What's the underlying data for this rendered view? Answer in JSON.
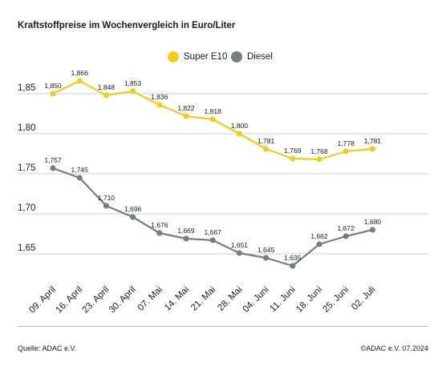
{
  "title": "Kraftstoffpreise im Wochenvergleich in Euro/Liter",
  "source": "Quelle: ADAC e.V.",
  "copyright": "©ADAC e.V. 07.2024",
  "colors": {
    "super": "#f2cd1a",
    "diesel": "#74807c",
    "grid": "#cfcfcf"
  },
  "chart_data": {
    "type": "line",
    "title": "Kraftstoffpreise im Wochenvergleich in Euro/Liter",
    "xlabel": "",
    "ylabel": "",
    "categories": [
      "09. April",
      "16. April",
      "23. April",
      "30. April",
      "07. Mai",
      "14. Mai",
      "21. Mai",
      "28. Mai",
      "04. Juni",
      "11. Juni",
      "18. Juni",
      "25. Juni",
      "02. Juli"
    ],
    "series": [
      {
        "name": "Super E10",
        "values": [
          1.85,
          1.866,
          1.848,
          1.853,
          1.836,
          1.822,
          1.818,
          1.8,
          1.781,
          1.769,
          1.768,
          1.778,
          1.781
        ],
        "labels": [
          "1,850",
          "1,866",
          "1,848",
          "1,853",
          "1,836",
          "1,822",
          "1,818",
          "1,800",
          "1,781",
          "1,769",
          "1,768",
          "1,778",
          "1,781"
        ]
      },
      {
        "name": "Diesel",
        "values": [
          1.757,
          1.745,
          1.71,
          1.696,
          1.676,
          1.669,
          1.667,
          1.651,
          1.645,
          1.635,
          1.662,
          1.672,
          1.68
        ],
        "labels": [
          "1,757",
          "1,745",
          "1,710",
          "1,696",
          "1,676",
          "1,669",
          "1,667",
          "1,651",
          "1,645",
          "1,635",
          "1,662",
          "1,672",
          "1,680"
        ]
      }
    ],
    "yticks": [
      1.65,
      1.7,
      1.75,
      1.8,
      1.85
    ],
    "ytick_labels": [
      "1,65",
      "1,70",
      "1,75",
      "1,80",
      "1,85"
    ],
    "ylim": [
      1.6,
      1.89
    ],
    "grid": true,
    "legend": "top-center"
  }
}
